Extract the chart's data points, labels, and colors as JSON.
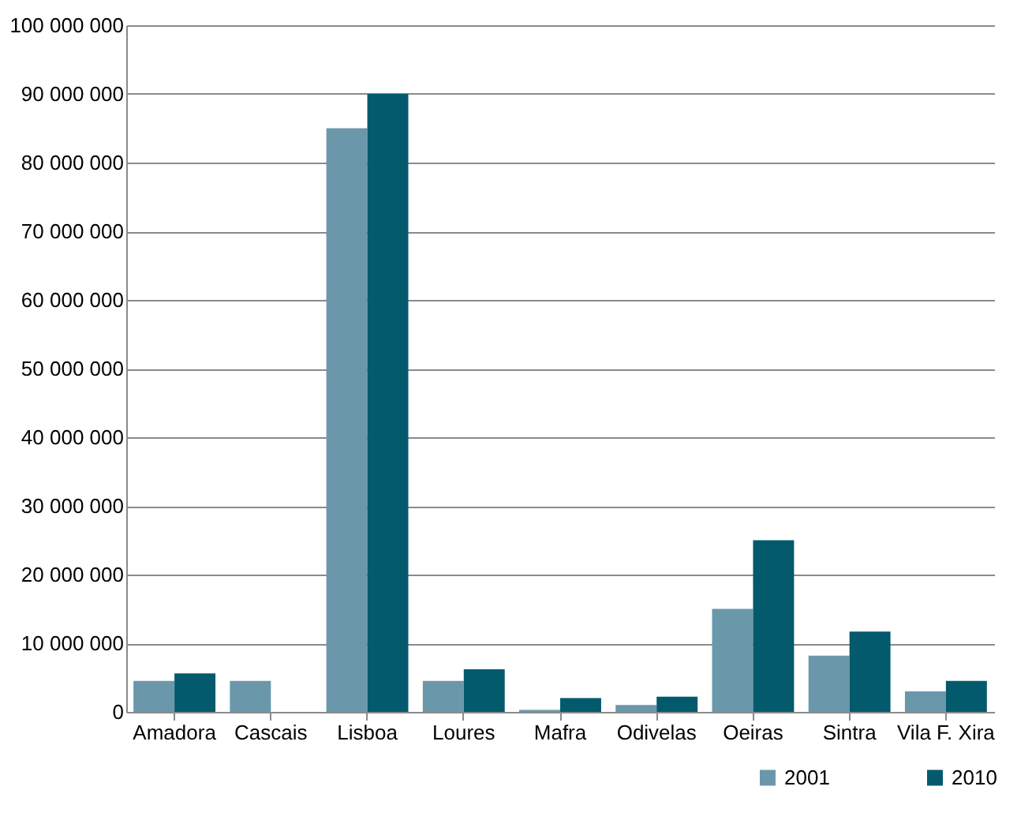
{
  "chart_data": {
    "type": "bar",
    "categories": [
      "Amadora",
      "Cascais",
      "Lisboa",
      "Loures",
      "Mafra",
      "Odivelas",
      "Oeiras",
      "Sintra",
      "Vila F. Xira"
    ],
    "series": [
      {
        "name": "2001",
        "color": "#6a98aa",
        "values": [
          4500000,
          4500000,
          85000000,
          4500000,
          300000,
          1000000,
          15000000,
          8200000,
          3000000
        ]
      },
      {
        "name": "2010",
        "color": "#035a6c",
        "values": [
          5600000,
          null,
          90000000,
          6200000,
          2000000,
          2200000,
          25000000,
          11700000,
          4500000
        ]
      }
    ],
    "ylim": [
      0,
      100000000
    ],
    "yticks": [
      0,
      10000000,
      20000000,
      30000000,
      40000000,
      50000000,
      60000000,
      70000000,
      80000000,
      90000000,
      100000000
    ],
    "grid": "y",
    "legend": "bottom right"
  }
}
